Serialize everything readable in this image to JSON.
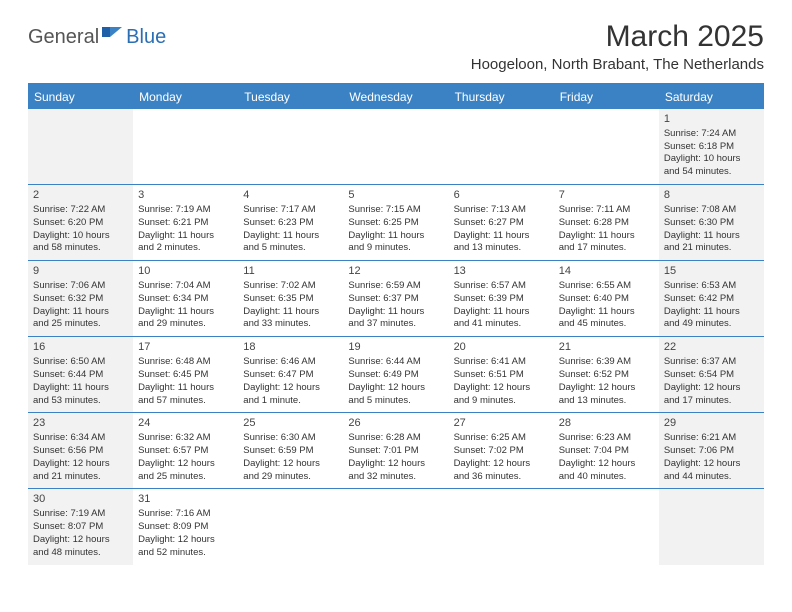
{
  "logo": {
    "part1": "General",
    "part2": "Blue"
  },
  "title": "March 2025",
  "location": "Hoogeloon, North Brabant, The Netherlands",
  "colors": {
    "header_bg": "#3b82c4",
    "header_text": "#ffffff",
    "weekend_bg": "#f2f2f2",
    "row_border": "#3b82c4",
    "logo_blue": "#2a6fb5",
    "logo_gray": "#555555"
  },
  "dayNames": [
    "Sunday",
    "Monday",
    "Tuesday",
    "Wednesday",
    "Thursday",
    "Friday",
    "Saturday"
  ],
  "weeks": [
    [
      null,
      null,
      null,
      null,
      null,
      null,
      {
        "n": "1",
        "sr": "Sunrise: 7:24 AM",
        "ss": "Sunset: 6:18 PM",
        "dl1": "Daylight: 10 hours",
        "dl2": "and 54 minutes."
      }
    ],
    [
      {
        "n": "2",
        "sr": "Sunrise: 7:22 AM",
        "ss": "Sunset: 6:20 PM",
        "dl1": "Daylight: 10 hours",
        "dl2": "and 58 minutes."
      },
      {
        "n": "3",
        "sr": "Sunrise: 7:19 AM",
        "ss": "Sunset: 6:21 PM",
        "dl1": "Daylight: 11 hours",
        "dl2": "and 2 minutes."
      },
      {
        "n": "4",
        "sr": "Sunrise: 7:17 AM",
        "ss": "Sunset: 6:23 PM",
        "dl1": "Daylight: 11 hours",
        "dl2": "and 5 minutes."
      },
      {
        "n": "5",
        "sr": "Sunrise: 7:15 AM",
        "ss": "Sunset: 6:25 PM",
        "dl1": "Daylight: 11 hours",
        "dl2": "and 9 minutes."
      },
      {
        "n": "6",
        "sr": "Sunrise: 7:13 AM",
        "ss": "Sunset: 6:27 PM",
        "dl1": "Daylight: 11 hours",
        "dl2": "and 13 minutes."
      },
      {
        "n": "7",
        "sr": "Sunrise: 7:11 AM",
        "ss": "Sunset: 6:28 PM",
        "dl1": "Daylight: 11 hours",
        "dl2": "and 17 minutes."
      },
      {
        "n": "8",
        "sr": "Sunrise: 7:08 AM",
        "ss": "Sunset: 6:30 PM",
        "dl1": "Daylight: 11 hours",
        "dl2": "and 21 minutes."
      }
    ],
    [
      {
        "n": "9",
        "sr": "Sunrise: 7:06 AM",
        "ss": "Sunset: 6:32 PM",
        "dl1": "Daylight: 11 hours",
        "dl2": "and 25 minutes."
      },
      {
        "n": "10",
        "sr": "Sunrise: 7:04 AM",
        "ss": "Sunset: 6:34 PM",
        "dl1": "Daylight: 11 hours",
        "dl2": "and 29 minutes."
      },
      {
        "n": "11",
        "sr": "Sunrise: 7:02 AM",
        "ss": "Sunset: 6:35 PM",
        "dl1": "Daylight: 11 hours",
        "dl2": "and 33 minutes."
      },
      {
        "n": "12",
        "sr": "Sunrise: 6:59 AM",
        "ss": "Sunset: 6:37 PM",
        "dl1": "Daylight: 11 hours",
        "dl2": "and 37 minutes."
      },
      {
        "n": "13",
        "sr": "Sunrise: 6:57 AM",
        "ss": "Sunset: 6:39 PM",
        "dl1": "Daylight: 11 hours",
        "dl2": "and 41 minutes."
      },
      {
        "n": "14",
        "sr": "Sunrise: 6:55 AM",
        "ss": "Sunset: 6:40 PM",
        "dl1": "Daylight: 11 hours",
        "dl2": "and 45 minutes."
      },
      {
        "n": "15",
        "sr": "Sunrise: 6:53 AM",
        "ss": "Sunset: 6:42 PM",
        "dl1": "Daylight: 11 hours",
        "dl2": "and 49 minutes."
      }
    ],
    [
      {
        "n": "16",
        "sr": "Sunrise: 6:50 AM",
        "ss": "Sunset: 6:44 PM",
        "dl1": "Daylight: 11 hours",
        "dl2": "and 53 minutes."
      },
      {
        "n": "17",
        "sr": "Sunrise: 6:48 AM",
        "ss": "Sunset: 6:45 PM",
        "dl1": "Daylight: 11 hours",
        "dl2": "and 57 minutes."
      },
      {
        "n": "18",
        "sr": "Sunrise: 6:46 AM",
        "ss": "Sunset: 6:47 PM",
        "dl1": "Daylight: 12 hours",
        "dl2": "and 1 minute."
      },
      {
        "n": "19",
        "sr": "Sunrise: 6:44 AM",
        "ss": "Sunset: 6:49 PM",
        "dl1": "Daylight: 12 hours",
        "dl2": "and 5 minutes."
      },
      {
        "n": "20",
        "sr": "Sunrise: 6:41 AM",
        "ss": "Sunset: 6:51 PM",
        "dl1": "Daylight: 12 hours",
        "dl2": "and 9 minutes."
      },
      {
        "n": "21",
        "sr": "Sunrise: 6:39 AM",
        "ss": "Sunset: 6:52 PM",
        "dl1": "Daylight: 12 hours",
        "dl2": "and 13 minutes."
      },
      {
        "n": "22",
        "sr": "Sunrise: 6:37 AM",
        "ss": "Sunset: 6:54 PM",
        "dl1": "Daylight: 12 hours",
        "dl2": "and 17 minutes."
      }
    ],
    [
      {
        "n": "23",
        "sr": "Sunrise: 6:34 AM",
        "ss": "Sunset: 6:56 PM",
        "dl1": "Daylight: 12 hours",
        "dl2": "and 21 minutes."
      },
      {
        "n": "24",
        "sr": "Sunrise: 6:32 AM",
        "ss": "Sunset: 6:57 PM",
        "dl1": "Daylight: 12 hours",
        "dl2": "and 25 minutes."
      },
      {
        "n": "25",
        "sr": "Sunrise: 6:30 AM",
        "ss": "Sunset: 6:59 PM",
        "dl1": "Daylight: 12 hours",
        "dl2": "and 29 minutes."
      },
      {
        "n": "26",
        "sr": "Sunrise: 6:28 AM",
        "ss": "Sunset: 7:01 PM",
        "dl1": "Daylight: 12 hours",
        "dl2": "and 32 minutes."
      },
      {
        "n": "27",
        "sr": "Sunrise: 6:25 AM",
        "ss": "Sunset: 7:02 PM",
        "dl1": "Daylight: 12 hours",
        "dl2": "and 36 minutes."
      },
      {
        "n": "28",
        "sr": "Sunrise: 6:23 AM",
        "ss": "Sunset: 7:04 PM",
        "dl1": "Daylight: 12 hours",
        "dl2": "and 40 minutes."
      },
      {
        "n": "29",
        "sr": "Sunrise: 6:21 AM",
        "ss": "Sunset: 7:06 PM",
        "dl1": "Daylight: 12 hours",
        "dl2": "and 44 minutes."
      }
    ],
    [
      {
        "n": "30",
        "sr": "Sunrise: 7:19 AM",
        "ss": "Sunset: 8:07 PM",
        "dl1": "Daylight: 12 hours",
        "dl2": "and 48 minutes."
      },
      {
        "n": "31",
        "sr": "Sunrise: 7:16 AM",
        "ss": "Sunset: 8:09 PM",
        "dl1": "Daylight: 12 hours",
        "dl2": "and 52 minutes."
      },
      null,
      null,
      null,
      null,
      null
    ]
  ]
}
